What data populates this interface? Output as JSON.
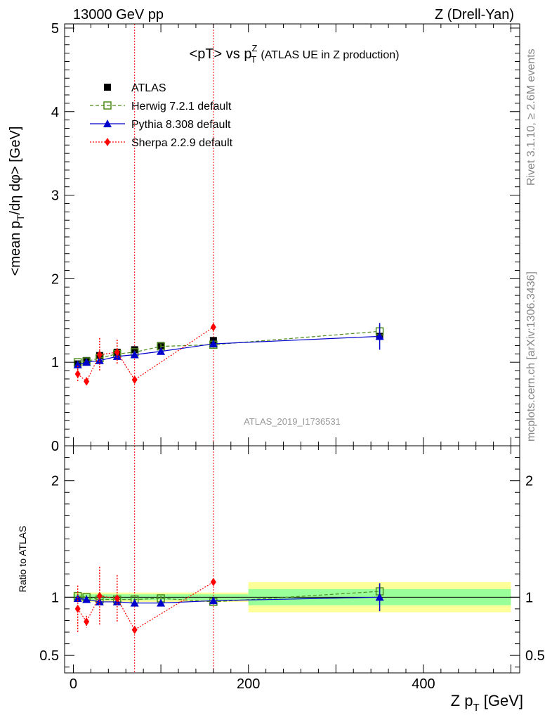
{
  "header": {
    "left": "13000 GeV pp",
    "right": "Z (Drell-Yan)"
  },
  "side_labels": {
    "rivet": "Rivet 3.1.10, ≥ 2.6M events",
    "mcplots": "mcplots.cern.ch [arXiv:1306.3436]"
  },
  "chart_data": [
    {
      "type": "scatter",
      "title": "<pT> vs pTZ (ATLAS UE in Z production)",
      "title_parts": {
        "main": "<pT> vs p",
        "sup": "Z",
        "sub": "T",
        "rest": "(ATLAS UE in Z production)"
      },
      "ylabel": "<mean pT/dη dφ> [GeV]",
      "ylabel_parts": {
        "a": "<mean p",
        "sub": "T",
        "b": "/dη dφ> [GeV]"
      },
      "xlim": [
        -10,
        510
      ],
      "ylim": [
        0,
        5.05
      ],
      "yticks": [
        "0",
        "1",
        "2",
        "3",
        "4",
        "5"
      ],
      "watermark": "ATLAS_2019_I1736531",
      "legend_position": "top-left",
      "vertical_lines_x": [
        70,
        160
      ],
      "series": [
        {
          "name": "ATLAS",
          "color": "#000000",
          "marker": "square-filled",
          "x": [
            5,
            15,
            30,
            50,
            70,
            100,
            160,
            350
          ],
          "y": [
            0.98,
            1.02,
            1.08,
            1.12,
            1.15,
            1.2,
            1.26,
            1.31
          ],
          "yerr": [
            0.02,
            0.02,
            0.02,
            0.02,
            0.02,
            0.02,
            0.03,
            0.04
          ]
        },
        {
          "name": "Herwig 7.2.1 default",
          "color": "#4c8c1c",
          "marker": "square-open",
          "line": "dashed",
          "x": [
            5,
            15,
            30,
            50,
            70,
            100,
            160,
            350
          ],
          "y": [
            1.0,
            1.01,
            1.05,
            1.1,
            1.12,
            1.19,
            1.21,
            1.37
          ],
          "yerr": [
            0.02,
            0.02,
            0.02,
            0.02,
            0.02,
            0.03,
            0.03,
            0.09
          ]
        },
        {
          "name": "Pythia 8.308 default",
          "color": "#0000cc",
          "marker": "triangle",
          "line": "solid",
          "x": [
            5,
            15,
            30,
            50,
            70,
            100,
            160,
            350
          ],
          "y": [
            0.97,
            1.0,
            1.02,
            1.07,
            1.09,
            1.13,
            1.22,
            1.31
          ],
          "yerr": [
            0.02,
            0.02,
            0.02,
            0.02,
            0.02,
            0.02,
            0.03,
            0.16
          ]
        },
        {
          "name": "Sherpa 2.2.9 default",
          "color": "#ff0000",
          "marker": "diamond",
          "line": "dotted",
          "x": [
            5,
            15,
            30,
            50,
            70,
            160
          ],
          "y": [
            0.86,
            0.77,
            1.09,
            1.12,
            0.79,
            1.42
          ],
          "yerr": [
            0.1,
            0.05,
            0.2,
            0.15,
            0.02,
            0.02
          ]
        }
      ]
    },
    {
      "type": "scatter",
      "ylabel": "Ratio to ATLAS",
      "xlabel": "Z pT [GeV]",
      "xlabel_parts": {
        "a": "Z p",
        "sub": "T",
        "b": " [GeV]"
      },
      "xlim": [
        -10,
        510
      ],
      "xticks": [
        "0",
        "200",
        "400"
      ],
      "ylim": [
        0.35,
        2.3
      ],
      "yticks": [
        "0.5",
        "1",
        "2"
      ],
      "ref_line": 1,
      "uncertainty_bands": [
        {
          "x": [
            0,
            200
          ],
          "inner": [
            0.975,
            1.025
          ],
          "outer": [
            0.96,
            1.04
          ]
        },
        {
          "x": [
            200,
            500
          ],
          "inner": [
            0.93,
            1.07
          ],
          "outer": [
            0.87,
            1.13
          ]
        }
      ],
      "band_colors": {
        "inner": "#99ff99",
        "outer": "#ffff99"
      },
      "series": [
        {
          "name": "Herwig 7.2.1 default",
          "color": "#4c8c1c",
          "marker": "square-open",
          "line": "dashed",
          "x": [
            5,
            15,
            30,
            50,
            70,
            100,
            160,
            350
          ],
          "y": [
            1.01,
            1.0,
            0.98,
            0.98,
            0.98,
            0.99,
            0.96,
            1.05
          ],
          "yerr": [
            0.02,
            0.02,
            0.02,
            0.02,
            0.02,
            0.02,
            0.02,
            0.07
          ]
        },
        {
          "name": "Pythia 8.308 default",
          "color": "#0000cc",
          "marker": "triangle",
          "line": "solid",
          "x": [
            5,
            15,
            30,
            50,
            70,
            100,
            160,
            350
          ],
          "y": [
            0.99,
            0.98,
            0.96,
            0.96,
            0.95,
            0.95,
            0.97,
            1.0
          ],
          "yerr": [
            0.02,
            0.02,
            0.02,
            0.02,
            0.02,
            0.02,
            0.02,
            0.12
          ]
        },
        {
          "name": "Sherpa 2.2.9 default",
          "color": "#ff0000",
          "marker": "diamond",
          "line": "dotted",
          "x": [
            5,
            15,
            30,
            50,
            70,
            160
          ],
          "y": [
            0.9,
            0.79,
            1.01,
            0.99,
            0.72,
            1.13
          ],
          "yerr": [
            0.2,
            0.05,
            0.25,
            0.2,
            0.02,
            0.02
          ]
        }
      ]
    }
  ]
}
